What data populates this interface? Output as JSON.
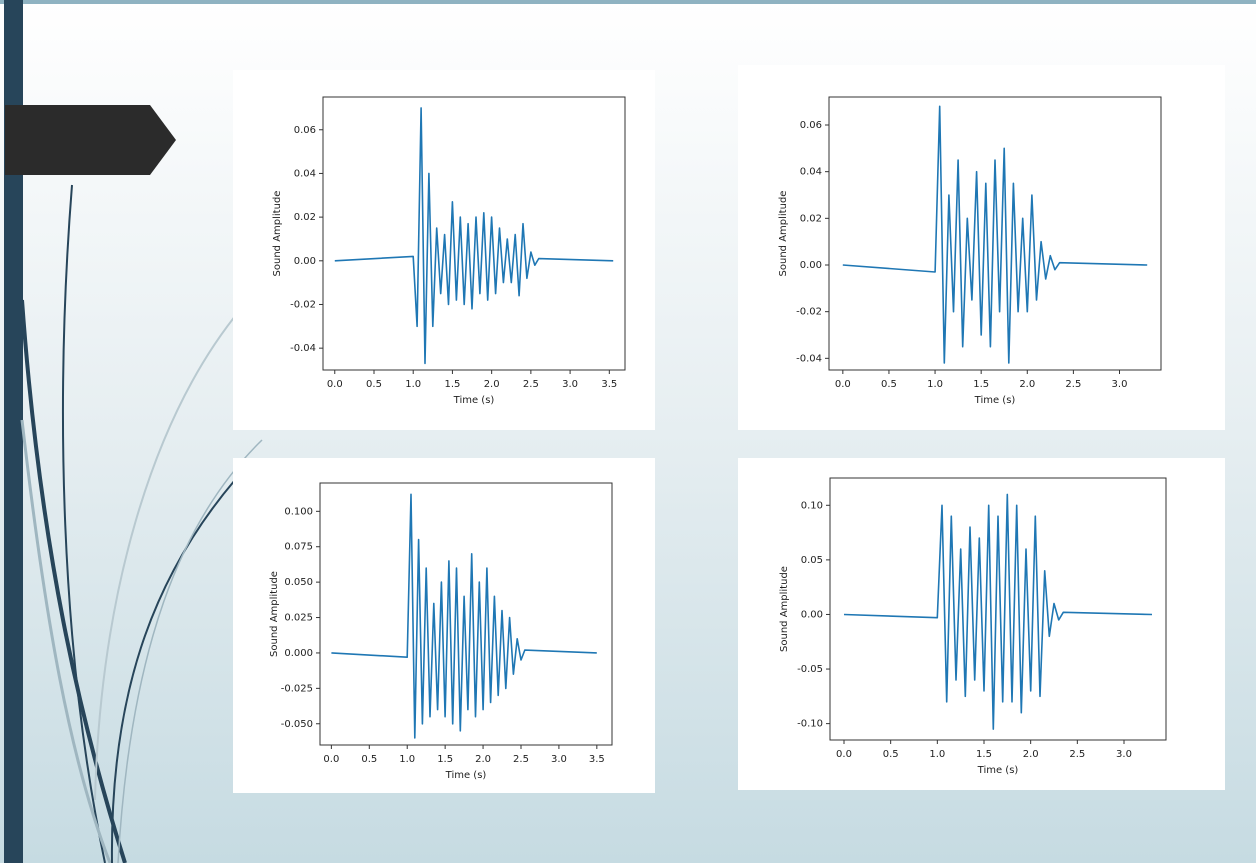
{
  "chart_data": [
    {
      "type": "line",
      "x_label": "Time (s)",
      "y_label": "Sound Amplitude",
      "color": "#1f77b4",
      "x": [
        0,
        1,
        1.05,
        1.1,
        1.15,
        1.2,
        1.25,
        1.3,
        1.35,
        1.4,
        1.45,
        1.5,
        1.55,
        1.6,
        1.65,
        1.7,
        1.75,
        1.8,
        1.85,
        1.9,
        1.95,
        2,
        2.05,
        2.1,
        2.15,
        2.2,
        2.25,
        2.3,
        2.35,
        2.4,
        2.45,
        2.5,
        2.55,
        2.6,
        3.55
      ],
      "values": [
        0,
        0.002,
        -0.03,
        0.07,
        -0.047,
        0.04,
        -0.03,
        0.015,
        -0.015,
        0.012,
        -0.02,
        0.027,
        -0.018,
        0.02,
        -0.02,
        0.017,
        -0.022,
        0.02,
        -0.015,
        0.022,
        -0.018,
        0.02,
        -0.015,
        0.015,
        -0.01,
        0.01,
        -0.01,
        0.012,
        -0.016,
        0.017,
        -0.008,
        0.004,
        -0.002,
        0.001,
        0
      ],
      "xlim": [
        -0.15,
        3.7
      ],
      "ylim": [
        -0.05,
        0.075
      ],
      "xticks": [
        {
          "value": 0,
          "label": "0.0"
        },
        {
          "value": 0.5,
          "label": "0.5"
        },
        {
          "value": 1,
          "label": "1.0"
        },
        {
          "value": 1.5,
          "label": "1.5"
        },
        {
          "value": 2,
          "label": "2.0"
        },
        {
          "value": 2.5,
          "label": "2.5"
        },
        {
          "value": 3,
          "label": "3.0"
        },
        {
          "value": 3.5,
          "label": "3.5"
        }
      ],
      "yticks": [
        -0.04,
        -0.02,
        {
          "value": 0,
          "label": "0.00"
        },
        0.02,
        0.04,
        0.06
      ]
    },
    {
      "type": "line",
      "x_label": "Time (s)",
      "y_label": "Sound Amplitude",
      "color": "#1f77b4",
      "x": [
        0,
        1,
        1.05,
        1.1,
        1.15,
        1.2,
        1.25,
        1.3,
        1.35,
        1.4,
        1.45,
        1.5,
        1.55,
        1.6,
        1.65,
        1.7,
        1.75,
        1.8,
        1.85,
        1.9,
        1.95,
        2,
        2.05,
        2.1,
        2.15,
        2.2,
        2.25,
        2.3,
        2.35,
        3.3
      ],
      "values": [
        0,
        -0.003,
        0.068,
        -0.042,
        0.03,
        -0.02,
        0.045,
        -0.035,
        0.02,
        -0.015,
        0.04,
        -0.03,
        0.035,
        -0.035,
        0.045,
        -0.02,
        0.05,
        -0.042,
        0.035,
        -0.02,
        0.02,
        -0.02,
        0.03,
        -0.015,
        0.01,
        -0.006,
        0.004,
        -0.002,
        0.001,
        0
      ],
      "xlim": [
        -0.15,
        3.45
      ],
      "ylim": [
        -0.045,
        0.072
      ],
      "xticks": [
        {
          "value": 0,
          "label": "0.0"
        },
        {
          "value": 0.5,
          "label": "0.5"
        },
        {
          "value": 1,
          "label": "1.0"
        },
        {
          "value": 1.5,
          "label": "1.5"
        },
        {
          "value": 2,
          "label": "2.0"
        },
        {
          "value": 2.5,
          "label": "2.5"
        },
        {
          "value": 3,
          "label": "3.0"
        }
      ],
      "yticks": [
        -0.04,
        -0.02,
        {
          "value": 0,
          "label": "0.00"
        },
        0.02,
        0.04,
        0.06
      ]
    },
    {
      "type": "line",
      "x_label": "Time (s)",
      "y_label": "Sound Amplitude",
      "color": "#1f77b4",
      "x": [
        0,
        1,
        1.05,
        1.1,
        1.15,
        1.2,
        1.25,
        1.3,
        1.35,
        1.4,
        1.45,
        1.5,
        1.55,
        1.6,
        1.65,
        1.7,
        1.75,
        1.8,
        1.85,
        1.9,
        1.95,
        2,
        2.05,
        2.1,
        2.15,
        2.2,
        2.25,
        2.3,
        2.35,
        2.4,
        2.45,
        2.5,
        2.55,
        3.5
      ],
      "values": [
        0,
        -0.003,
        0.112,
        -0.06,
        0.08,
        -0.05,
        0.06,
        -0.045,
        0.035,
        -0.04,
        0.05,
        -0.045,
        0.065,
        -0.05,
        0.06,
        -0.055,
        0.04,
        -0.04,
        0.07,
        -0.045,
        0.05,
        -0.04,
        0.06,
        -0.035,
        0.04,
        -0.03,
        0.03,
        -0.025,
        0.025,
        -0.015,
        0.01,
        -0.005,
        0.002,
        0
      ],
      "xlim": [
        -0.15,
        3.7
      ],
      "ylim": [
        -0.065,
        0.12
      ],
      "xticks": [
        {
          "value": 0,
          "label": "0.0"
        },
        {
          "value": 0.5,
          "label": "0.5"
        },
        {
          "value": 1,
          "label": "1.0"
        },
        {
          "value": 1.5,
          "label": "1.5"
        },
        {
          "value": 2,
          "label": "2.0"
        },
        {
          "value": 2.5,
          "label": "2.5"
        },
        {
          "value": 3,
          "label": "3.0"
        },
        {
          "value": 3.5,
          "label": "3.5"
        }
      ],
      "yticks": [
        {
          "value": -0.05,
          "label": "-0.050"
        },
        -0.025,
        {
          "value": 0,
          "label": "0.000"
        },
        0.025,
        {
          "value": 0.05,
          "label": "0.050"
        },
        0.075,
        {
          "value": 0.1,
          "label": "0.100"
        }
      ]
    },
    {
      "type": "line",
      "x_label": "Time (s)",
      "y_label": "Sound Amplitude",
      "color": "#1f77b4",
      "x": [
        0,
        1,
        1.05,
        1.1,
        1.15,
        1.2,
        1.25,
        1.3,
        1.35,
        1.4,
        1.45,
        1.5,
        1.55,
        1.6,
        1.65,
        1.7,
        1.75,
        1.8,
        1.85,
        1.9,
        1.95,
        2,
        2.05,
        2.1,
        2.15,
        2.2,
        2.25,
        2.3,
        2.35,
        3.3
      ],
      "values": [
        0,
        -0.003,
        0.1,
        -0.08,
        0.09,
        -0.06,
        0.06,
        -0.075,
        0.08,
        -0.06,
        0.07,
        -0.07,
        0.1,
        -0.105,
        0.09,
        -0.08,
        0.11,
        -0.08,
        0.1,
        -0.09,
        0.06,
        -0.07,
        0.09,
        -0.075,
        0.04,
        -0.02,
        0.01,
        -0.005,
        0.002,
        0
      ],
      "xlim": [
        -0.15,
        3.45
      ],
      "ylim": [
        -0.115,
        0.125
      ],
      "xticks": [
        {
          "value": 0,
          "label": "0.0"
        },
        {
          "value": 0.5,
          "label": "0.5"
        },
        {
          "value": 1,
          "label": "1.0"
        },
        {
          "value": 1.5,
          "label": "1.5"
        },
        {
          "value": 2,
          "label": "2.0"
        },
        {
          "value": 2.5,
          "label": "2.5"
        },
        {
          "value": 3,
          "label": "3.0"
        }
      ],
      "yticks": [
        {
          "value": -0.1,
          "label": "-0.10"
        },
        -0.05,
        {
          "value": 0,
          "label": "0.00"
        },
        0.05,
        {
          "value": 0.1,
          "label": "0.10"
        }
      ]
    }
  ]
}
